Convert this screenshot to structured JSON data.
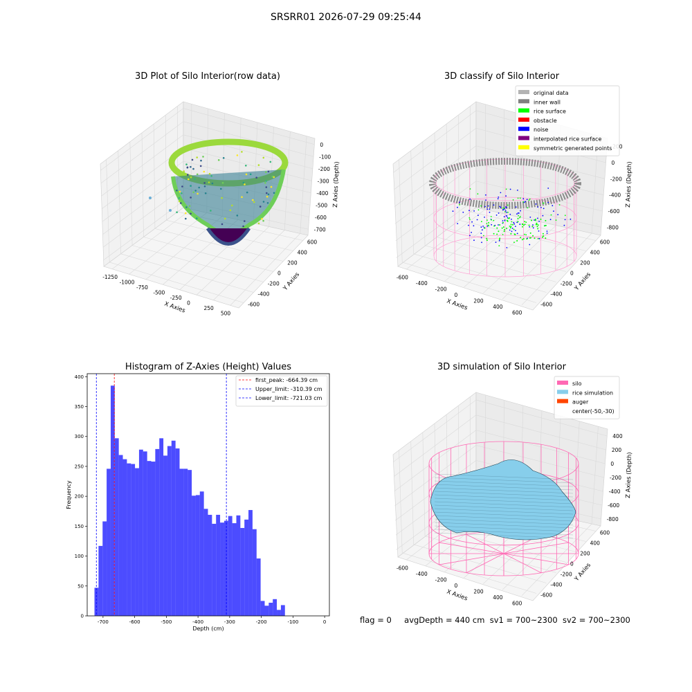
{
  "figure_title": "SRSRR01 2026-07-29 09:25:44",
  "footer": {
    "flag": "flag = 0",
    "avg_depth": "avgDepth = 440 cm",
    "sv1": "sv1 = 700~2300",
    "sv2": "sv2 = 700~2300"
  },
  "chart_data": [
    {
      "type": "scatter",
      "title": "3D Plot of Silo Interior(row data)",
      "xlabel": "X Axies",
      "ylabel": "Y Axies",
      "zlabel": "Z Axies (Depth)",
      "x_ticks": [
        "-1250",
        "-1000",
        "-750",
        "-500",
        "-250",
        "0",
        "250",
        "500"
      ],
      "y_ticks": [
        "-600",
        "-400",
        "-200",
        "0",
        "200",
        "400",
        "600"
      ],
      "z_ticks": [
        "0",
        "-100",
        "-200",
        "-300",
        "-400",
        "-500",
        "-600",
        "-700"
      ],
      "colormap": "viridis"
    },
    {
      "type": "scatter",
      "title": "3D classify of Silo Interior",
      "xlabel": "X Axies",
      "ylabel": "Y Axies",
      "zlabel": "Z Axies (Depth)",
      "x_ticks": [
        "-600",
        "-400",
        "-200",
        "0",
        "200",
        "400",
        "600"
      ],
      "y_ticks": [
        "-600",
        "-400",
        "-200",
        "0",
        "200",
        "400",
        "600"
      ],
      "z_ticks": [
        "200",
        "0",
        "-200",
        "-400",
        "-600",
        "-800"
      ],
      "z_top_partial": "00",
      "legend": [
        {
          "label": "original data",
          "color": "#b3b3b3"
        },
        {
          "label": "inner wall",
          "color": "#808080"
        },
        {
          "label": "rice surface",
          "color": "#00ff00"
        },
        {
          "label": "obstacle",
          "color": "#ff0000"
        },
        {
          "label": "noise",
          "color": "#0000ff"
        },
        {
          "label": "interpolated rice surface",
          "color": "#800080"
        },
        {
          "label": "symmetric generated points",
          "color": "#ffff00"
        }
      ]
    },
    {
      "type": "bar",
      "title": "Histogram of Z-Axies (Height) Values",
      "xlabel": "Depth (cm)",
      "ylabel": "Frequency",
      "xlim": [
        -750,
        15
      ],
      "ylim": [
        0,
        405
      ],
      "x_ticks": [
        -700,
        -600,
        -500,
        -400,
        -300,
        -200,
        -100,
        0
      ],
      "y_ticks": [
        0,
        50,
        100,
        150,
        200,
        250,
        300,
        350,
        400
      ],
      "bin_width": 12.8,
      "bin_start": -727.0,
      "values": [
        47,
        117,
        158,
        246,
        385,
        297,
        269,
        262,
        255,
        254,
        247,
        278,
        275,
        259,
        258,
        279,
        297,
        268,
        284,
        293,
        280,
        246,
        246,
        244,
        201,
        202,
        208,
        179,
        169,
        154,
        169,
        156,
        159,
        167,
        155,
        168,
        147,
        161,
        177,
        145,
        96,
        25,
        17,
        22,
        28,
        10,
        18
      ],
      "bar_color": "#0000ff",
      "lines": [
        {
          "label": "first_peak: -664.39 cm",
          "x": -664.39,
          "color": "#ff0000"
        },
        {
          "label": "Upper_limit: -310.39 cm",
          "x": -310.39,
          "color": "#0000ff"
        },
        {
          "label": "Lower_limit: -721.03 cm",
          "x": -721.03,
          "color": "#0000ff"
        }
      ],
      "legend_position": "top-right"
    },
    {
      "type": "surface",
      "title": "3D simulation of Silo Interior",
      "xlabel": "X Axies",
      "ylabel": "Y Axies",
      "zlabel": "Z Axies (Depth)",
      "x_ticks": [
        "-600",
        "-400",
        "-200",
        "0",
        "200",
        "400",
        "600"
      ],
      "y_ticks": [
        "-600",
        "-400",
        "-200",
        "0",
        "200",
        "400",
        "600"
      ],
      "z_ticks": [
        "400",
        "200",
        "0",
        "-200",
        "-400",
        "-600",
        "-800"
      ],
      "legend": [
        {
          "label": "silo",
          "color": "#ff69b4"
        },
        {
          "label": "rice simulation",
          "color": "#87ceeb"
        },
        {
          "label": "auger",
          "color": "#ff4500"
        },
        {
          "label": "center(-50,-30)",
          "color": ""
        }
      ]
    }
  ]
}
